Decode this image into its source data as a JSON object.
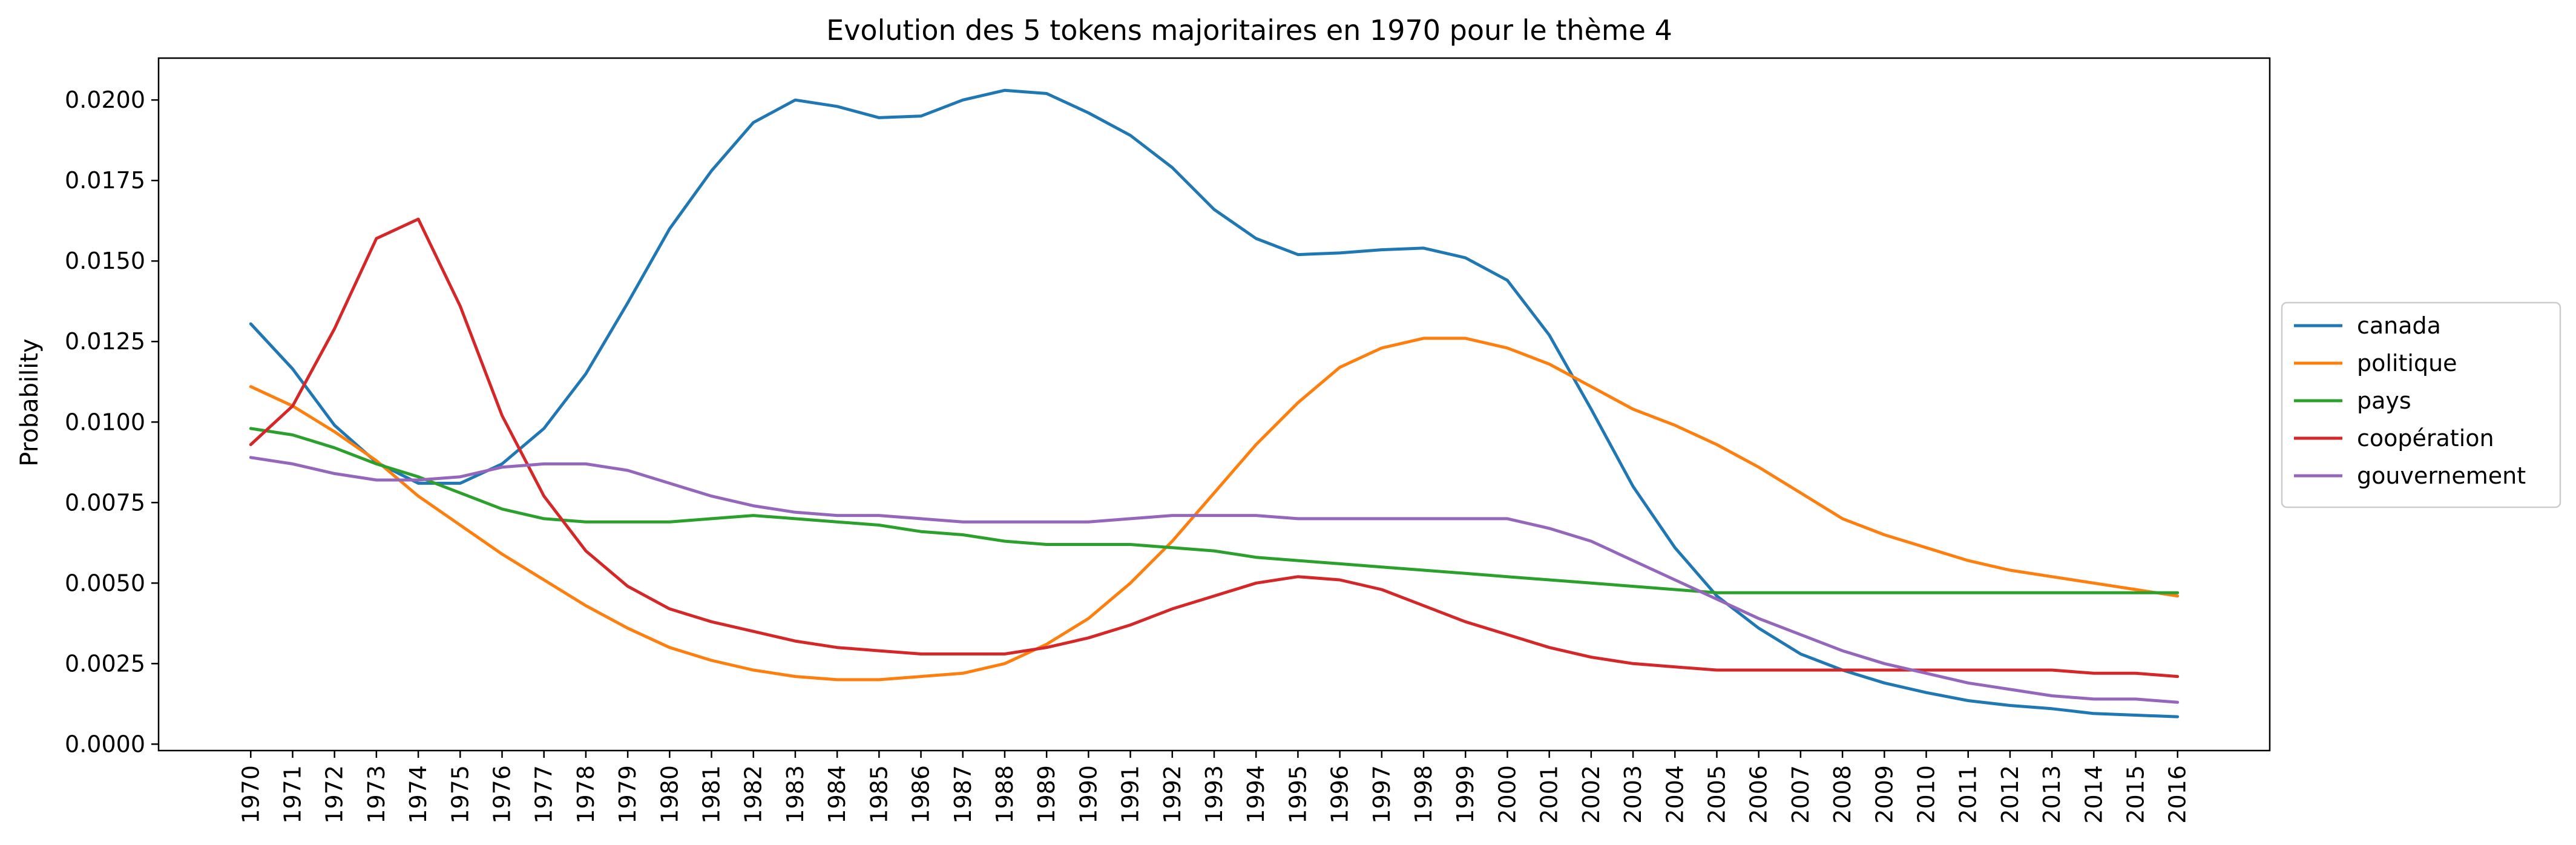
{
  "chart_data": {
    "type": "line",
    "title": "Evolution des 5 tokens majoritaires en 1970 pour le thème 4",
    "xlabel": "",
    "ylabel": "Probability",
    "x": [
      1970,
      1971,
      1972,
      1973,
      1974,
      1975,
      1976,
      1977,
      1978,
      1979,
      1980,
      1981,
      1982,
      1983,
      1984,
      1985,
      1986,
      1987,
      1988,
      1989,
      1990,
      1991,
      1992,
      1993,
      1994,
      1995,
      1996,
      1997,
      1998,
      1999,
      2000,
      2001,
      2002,
      2003,
      2004,
      2005,
      2006,
      2007,
      2008,
      2009,
      2010,
      2011,
      2012,
      2013,
      2014,
      2015,
      2016
    ],
    "x_tick_labels": [
      "1970",
      "1971",
      "1972",
      "1973",
      "1974",
      "1975",
      "1976",
      "1977",
      "1978",
      "1979",
      "1980",
      "1981",
      "1982",
      "1983",
      "1984",
      "1985",
      "1986",
      "1987",
      "1988",
      "1989",
      "1990",
      "1991",
      "1992",
      "1993",
      "1994",
      "1995",
      "1996",
      "1997",
      "1998",
      "1999",
      "2000",
      "2001",
      "2002",
      "2003",
      "2004",
      "2005",
      "2006",
      "2007",
      "2008",
      "2009",
      "2010",
      "2011",
      "2012",
      "2013",
      "2014",
      "2015",
      "2016"
    ],
    "ylim": [
      -0.0002,
      0.0213
    ],
    "y_ticks": [
      0.0,
      0.0025,
      0.005,
      0.0075,
      0.01,
      0.0125,
      0.015,
      0.0175,
      0.02
    ],
    "y_tick_labels": [
      "0.0000",
      "0.0025",
      "0.0050",
      "0.0075",
      "0.0100",
      "0.0125",
      "0.0150",
      "0.0175",
      "0.0200"
    ],
    "grid": false,
    "legend_position": "right, outside plot",
    "series": [
      {
        "name": "canada",
        "color": "#1f77b4",
        "values": [
          0.01305,
          0.01165,
          0.0099,
          0.00875,
          0.0081,
          0.0081,
          0.0087,
          0.0098,
          0.0115,
          0.0137,
          0.016,
          0.0178,
          0.0193,
          0.02,
          0.0198,
          0.01945,
          0.0195,
          0.02,
          0.0203,
          0.0202,
          0.0196,
          0.0189,
          0.0179,
          0.0166,
          0.0157,
          0.0152,
          0.01525,
          0.01535,
          0.0154,
          0.0151,
          0.0144,
          0.0127,
          0.0104,
          0.008,
          0.0061,
          0.0046,
          0.0036,
          0.0028,
          0.0023,
          0.0019,
          0.0016,
          0.00135,
          0.0012,
          0.0011,
          0.00095,
          0.0009,
          0.00085
        ]
      },
      {
        "name": "politique",
        "color": "#ff7f0e",
        "values": [
          0.0111,
          0.0105,
          0.0097,
          0.0088,
          0.0077,
          0.0068,
          0.0059,
          0.0051,
          0.0043,
          0.0036,
          0.003,
          0.0026,
          0.0023,
          0.0021,
          0.002,
          0.002,
          0.0021,
          0.0022,
          0.0025,
          0.0031,
          0.0039,
          0.005,
          0.0063,
          0.0078,
          0.0093,
          0.0106,
          0.0117,
          0.0123,
          0.0126,
          0.0126,
          0.0123,
          0.0118,
          0.0111,
          0.0104,
          0.0099,
          0.0093,
          0.0086,
          0.0078,
          0.007,
          0.0065,
          0.0061,
          0.0057,
          0.0054,
          0.0052,
          0.005,
          0.0048,
          0.0046
        ]
      },
      {
        "name": "pays",
        "color": "#2ca02c",
        "values": [
          0.0098,
          0.0096,
          0.0092,
          0.0087,
          0.0083,
          0.0078,
          0.0073,
          0.007,
          0.0069,
          0.0069,
          0.0069,
          0.007,
          0.0071,
          0.007,
          0.0069,
          0.0068,
          0.0066,
          0.0065,
          0.0063,
          0.0062,
          0.0062,
          0.0062,
          0.0061,
          0.006,
          0.0058,
          0.0057,
          0.0056,
          0.0055,
          0.0054,
          0.0053,
          0.0052,
          0.0051,
          0.005,
          0.0049,
          0.0048,
          0.0047,
          0.0047,
          0.0047,
          0.0047,
          0.0047,
          0.0047,
          0.0047,
          0.0047,
          0.0047,
          0.0047,
          0.0047,
          0.0047
        ]
      },
      {
        "name": "coopération",
        "color": "#d62728",
        "values": [
          0.0093,
          0.0105,
          0.0129,
          0.0157,
          0.0163,
          0.0136,
          0.0102,
          0.0077,
          0.006,
          0.0049,
          0.0042,
          0.0038,
          0.0035,
          0.0032,
          0.003,
          0.0029,
          0.0028,
          0.0028,
          0.0028,
          0.003,
          0.0033,
          0.0037,
          0.0042,
          0.0046,
          0.005,
          0.0052,
          0.0051,
          0.0048,
          0.0043,
          0.0038,
          0.0034,
          0.003,
          0.0027,
          0.0025,
          0.0024,
          0.0023,
          0.0023,
          0.0023,
          0.0023,
          0.0023,
          0.0023,
          0.0023,
          0.0023,
          0.0023,
          0.0022,
          0.0022,
          0.0021
        ]
      },
      {
        "name": "gouvernement",
        "color": "#9467bd",
        "values": [
          0.0089,
          0.0087,
          0.0084,
          0.0082,
          0.0082,
          0.0083,
          0.0086,
          0.0087,
          0.0087,
          0.0085,
          0.0081,
          0.0077,
          0.0074,
          0.0072,
          0.0071,
          0.0071,
          0.007,
          0.0069,
          0.0069,
          0.0069,
          0.0069,
          0.007,
          0.0071,
          0.0071,
          0.0071,
          0.007,
          0.007,
          0.007,
          0.007,
          0.007,
          0.007,
          0.0067,
          0.0063,
          0.0057,
          0.0051,
          0.0045,
          0.0039,
          0.0034,
          0.0029,
          0.0025,
          0.0022,
          0.0019,
          0.0017,
          0.0015,
          0.0014,
          0.0014,
          0.0013
        ]
      }
    ]
  }
}
